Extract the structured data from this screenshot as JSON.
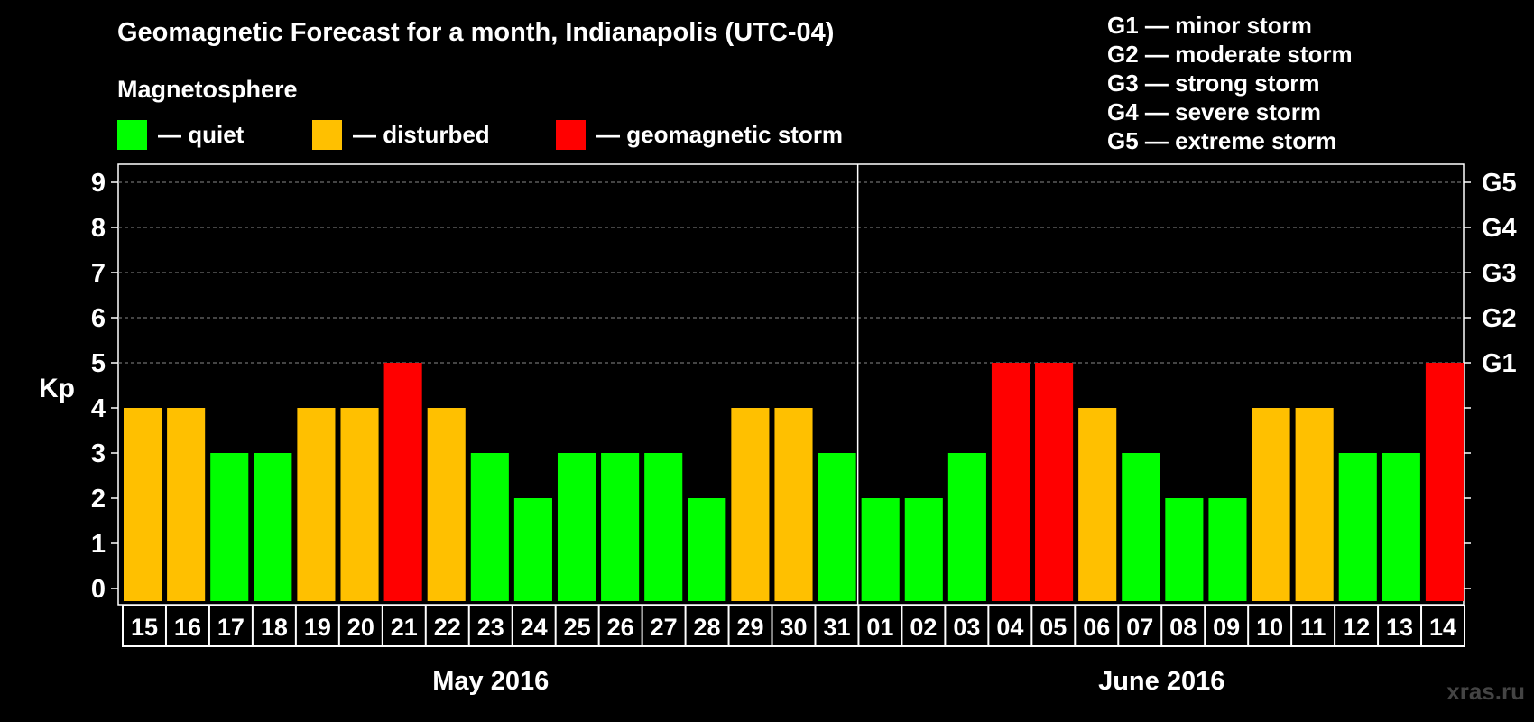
{
  "header": {
    "title": "Geomagnetic Forecast for a month, Indianapolis (UTC-04)",
    "subtitle": "Magnetosphere"
  },
  "legend": [
    {
      "label": "— quiet",
      "color": "#00ff00"
    },
    {
      "label": "— disturbed",
      "color": "#ffc000"
    },
    {
      "label": "— geomagnetic storm",
      "color": "#ff0000"
    }
  ],
  "g_scale": [
    "G1 — minor storm",
    "G2 — moderate storm",
    "G3 — strong storm",
    "G4 — severe storm",
    "G5 — extreme storm"
  ],
  "watermark": "xras.ru",
  "chart_data": {
    "type": "bar",
    "ylabel": "Kp",
    "ylim": [
      0,
      9
    ],
    "yticks": [
      0,
      1,
      2,
      3,
      4,
      5,
      6,
      7,
      8,
      9
    ],
    "right_axis_labels": [
      {
        "kp": 5,
        "label": "G1"
      },
      {
        "kp": 6,
        "label": "G2"
      },
      {
        "kp": 7,
        "label": "G3"
      },
      {
        "kp": 8,
        "label": "G4"
      },
      {
        "kp": 9,
        "label": "G5"
      }
    ],
    "grid": "dashed horizontal at Kp 5-9",
    "categories": [
      "15",
      "16",
      "17",
      "18",
      "19",
      "20",
      "21",
      "22",
      "23",
      "24",
      "25",
      "26",
      "27",
      "28",
      "29",
      "30",
      "31",
      "01",
      "02",
      "03",
      "04",
      "05",
      "06",
      "07",
      "08",
      "09",
      "10",
      "11",
      "12",
      "13",
      "14"
    ],
    "values": [
      4,
      4,
      3,
      3,
      4,
      4,
      5,
      4,
      3,
      2,
      3,
      3,
      3,
      2,
      4,
      4,
      3,
      2,
      2,
      3,
      5,
      5,
      4,
      3,
      2,
      2,
      4,
      4,
      3,
      3,
      5
    ],
    "month_groups": [
      {
        "label": "May 2016",
        "count": 17
      },
      {
        "label": "June 2016",
        "count": 14
      }
    ],
    "colors": {
      "quiet": "#00ff00",
      "disturbed": "#ffc000",
      "storm": "#ff0000"
    }
  }
}
